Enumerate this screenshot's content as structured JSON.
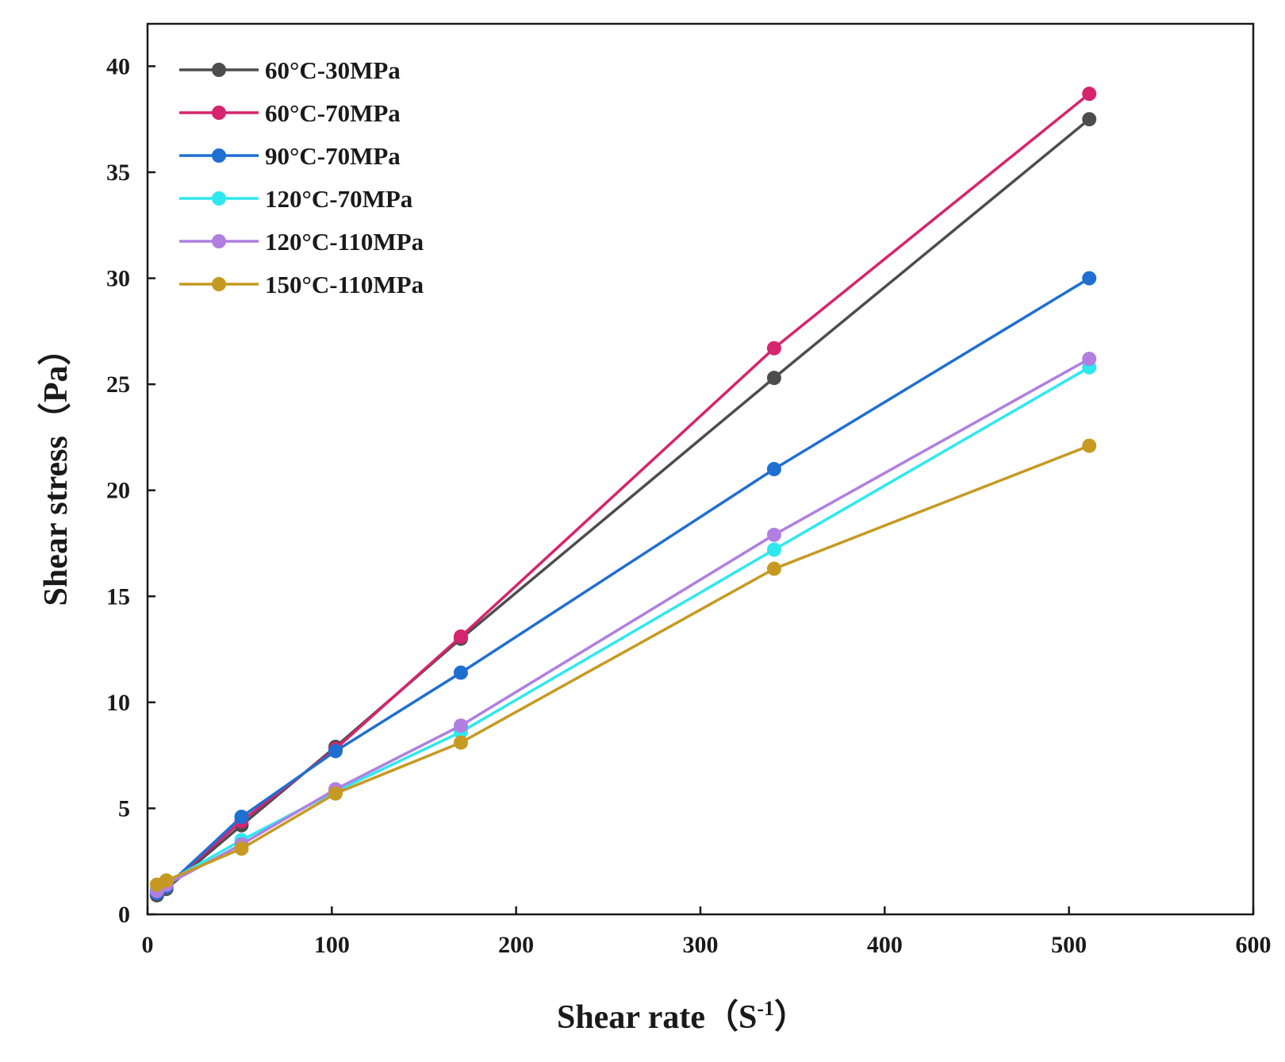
{
  "chart_data": {
    "type": "line",
    "title": "",
    "xlabel": "Shear rate（S",
    "xlabel_sup": "-1",
    "xlabel_end": "）",
    "ylabel": "Shear stress（Pa）",
    "xlim": [
      0,
      600
    ],
    "ylim": [
      0,
      42
    ],
    "xticks": [
      0,
      100,
      200,
      300,
      400,
      500,
      600
    ],
    "yticks": [
      0,
      5,
      10,
      15,
      20,
      25,
      30,
      35,
      40
    ],
    "grid": false,
    "legend_position": "top-left",
    "series": [
      {
        "name": "60°C-30MPa",
        "color": "#4d4d4d",
        "x": [
          5.1,
          10.2,
          51,
          102,
          170,
          340,
          511
        ],
        "y": [
          0.9,
          1.2,
          4.2,
          7.9,
          13.0,
          25.3,
          37.5
        ]
      },
      {
        "name": "60°C-70MPa",
        "color": "#d6246e",
        "x": [
          5.1,
          10.2,
          51,
          102,
          170,
          340,
          511
        ],
        "y": [
          1.0,
          1.3,
          4.4,
          7.8,
          13.1,
          26.7,
          38.7
        ]
      },
      {
        "name": "90°C-70MPa",
        "color": "#1f6fd1",
        "x": [
          5.1,
          10.2,
          51,
          102,
          170,
          340,
          511
        ],
        "y": [
          1.0,
          1.3,
          4.6,
          7.7,
          11.4,
          21.0,
          30.0
        ]
      },
      {
        "name": "120°C-70MPa",
        "color": "#2fe8ee",
        "x": [
          5.1,
          10.2,
          51,
          102,
          170,
          340,
          511
        ],
        "y": [
          1.2,
          1.5,
          3.5,
          5.8,
          8.6,
          17.2,
          25.8
        ]
      },
      {
        "name": "120°C-110MPa",
        "color": "#b07fe0",
        "x": [
          5.1,
          10.2,
          51,
          102,
          170,
          340,
          511
        ],
        "y": [
          1.1,
          1.4,
          3.3,
          5.9,
          8.9,
          17.9,
          26.2
        ]
      },
      {
        "name": "150°C-110MPa",
        "color": "#c69a22",
        "x": [
          5.1,
          10.2,
          51,
          102,
          170,
          340,
          511
        ],
        "y": [
          1.4,
          1.6,
          3.1,
          5.7,
          8.1,
          16.3,
          22.1
        ]
      }
    ]
  }
}
